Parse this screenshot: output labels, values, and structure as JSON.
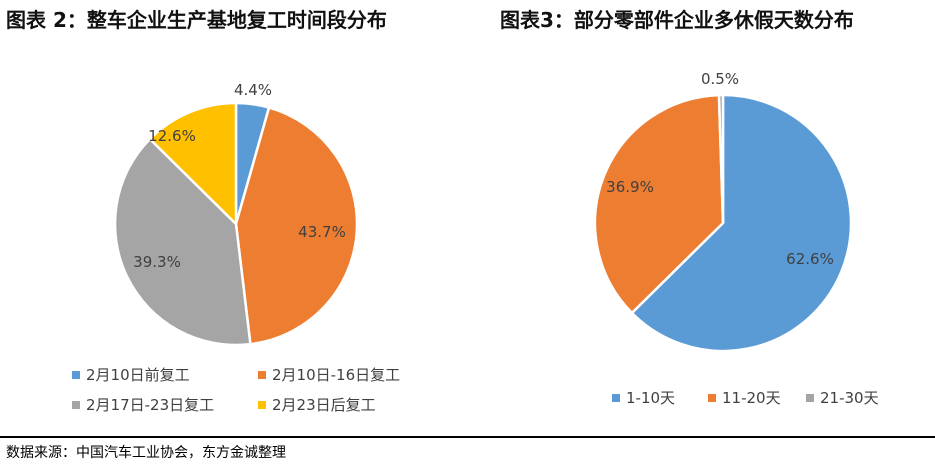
{
  "left_title": "图表 2：整车企业生产基地复工时间段分布",
  "right_title": "图表3：部分零部件企业多休假天数分布",
  "source": "数据来源：中国汽车工业协会，东方金诚整理",
  "chart_data": [
    {
      "type": "pie",
      "title": "图表 2：整车企业生产基地复工时间段分布",
      "legend_position": "bottom",
      "slices": [
        {
          "label": "2月10日前复工",
          "value": 4.4,
          "text": "4.4%",
          "color": "#5B9BD5"
        },
        {
          "label": "2月10日-16日复工",
          "value": 43.7,
          "text": "43.7%",
          "color": "#ED7D31"
        },
        {
          "label": "2月17日-23日复工",
          "value": 39.3,
          "text": "39.3%",
          "color": "#A5A5A5"
        },
        {
          "label": "2月23日后复工",
          "value": 12.6,
          "text": "12.6%",
          "color": "#FFC000"
        }
      ]
    },
    {
      "type": "pie",
      "title": "图表3：部分零部件企业多休假天数分布",
      "legend_position": "bottom",
      "slices": [
        {
          "label": "1-10天",
          "value": 62.6,
          "text": "62.6%",
          "color": "#5B9BD5"
        },
        {
          "label": "11-20天",
          "value": 36.9,
          "text": "36.9%",
          "color": "#ED7D31"
        },
        {
          "label": "21-30天",
          "value": 0.5,
          "text": "0.5%",
          "color": "#A5A5A5"
        }
      ]
    }
  ]
}
